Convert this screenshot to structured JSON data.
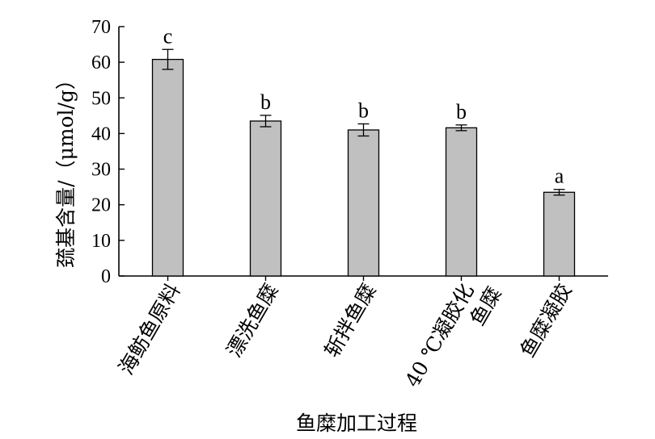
{
  "chart_data": {
    "type": "bar",
    "xlabel": "鱼糜加工过程",
    "ylabel": "巯基含量/（μmol/g）",
    "ylim": [
      0,
      70
    ],
    "yticks": [
      0,
      10,
      20,
      30,
      40,
      50,
      60,
      70
    ],
    "grid": false,
    "categories": [
      [
        "海鲂鱼原料"
      ],
      [
        "漂洗鱼糜"
      ],
      [
        "斩拌鱼糜"
      ],
      [
        "40 ℃凝胶化",
        "鱼糜"
      ],
      [
        "鱼糜凝胶"
      ]
    ],
    "values": [
      60.8,
      43.5,
      41.0,
      41.6,
      23.5
    ],
    "errors": [
      2.8,
      1.6,
      1.7,
      0.8,
      0.8
    ],
    "significance_labels": [
      "c",
      "b",
      "b",
      "b",
      "a"
    ],
    "bar_color": "#c0c0c0"
  }
}
